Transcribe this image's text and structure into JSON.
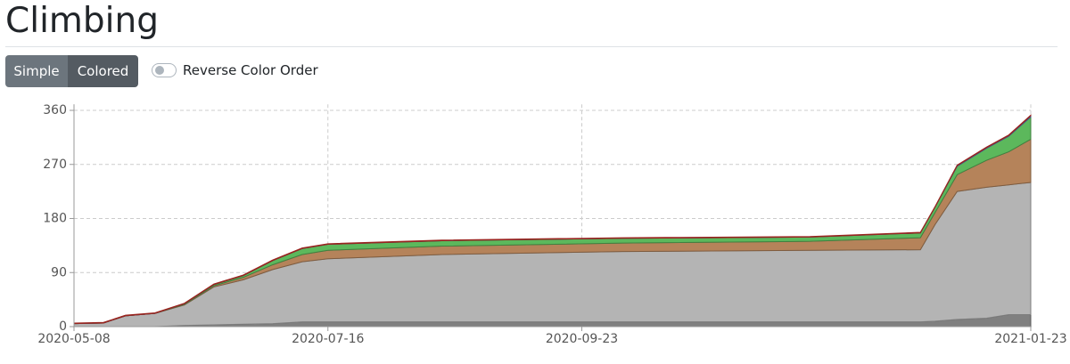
{
  "header": {
    "title": "Climbing"
  },
  "controls": {
    "buttons": [
      "Simple",
      "Colored"
    ],
    "toggle": "Reverse Color Order"
  },
  "chart_data": {
    "type": "stacked-area",
    "x": [
      "2020-05-08",
      "2020-05-16",
      "2020-05-22",
      "2020-05-30",
      "2020-06-07",
      "2020-06-15",
      "2020-06-23",
      "2020-07-01",
      "2020-07-09",
      "2020-07-16",
      "2020-08-16",
      "2020-10-04",
      "2020-11-24",
      "2020-12-24",
      "2020-12-28",
      "2021-01-03",
      "2021-01-11",
      "2021-01-17",
      "2021-01-23"
    ],
    "series": [
      {
        "color": "#808080",
        "values": [
          0,
          0,
          0,
          0,
          2,
          3,
          4,
          5,
          8,
          8,
          8,
          8,
          8,
          8,
          9,
          12,
          14,
          20,
          20
        ]
      },
      {
        "color": "#b4b4b4",
        "values": [
          5,
          6,
          18,
          22,
          34,
          63,
          74,
          90,
          100,
          105,
          112,
          117,
          119,
          120,
          161,
          213,
          218,
          216,
          220
        ]
      },
      {
        "color": "#b5835a",
        "values": [
          0,
          0,
          0,
          0,
          1,
          2,
          4,
          8,
          12,
          14,
          14,
          14,
          15,
          20,
          20,
          28,
          45,
          55,
          72
        ]
      },
      {
        "color": "#5cb85c",
        "values": [
          0,
          0,
          0,
          0,
          1,
          2,
          3,
          7,
          10,
          10,
          9,
          8,
          7,
          8,
          9,
          14,
          20,
          26,
          37
        ]
      },
      {
        "color": "#5b7fd6",
        "values": [
          0,
          0,
          0,
          0,
          0,
          0,
          0,
          0,
          0,
          0,
          0,
          0,
          0,
          0,
          0,
          1,
          1,
          1,
          2
        ]
      },
      {
        "color": "#d9342b",
        "values": [
          1,
          1,
          1,
          1,
          1,
          1,
          1,
          1,
          1,
          1,
          1,
          1,
          1,
          1,
          1,
          1,
          1,
          1,
          1
        ]
      }
    ],
    "xlim": [
      "2020-05-08",
      "2021-01-23"
    ],
    "xticks": [
      "2020-05-08",
      "2020-07-16",
      "2020-09-23",
      "2021-01-23"
    ],
    "ylim": [
      0,
      370
    ],
    "yticks": [
      0,
      90,
      180,
      270,
      360
    ],
    "grid": true
  }
}
